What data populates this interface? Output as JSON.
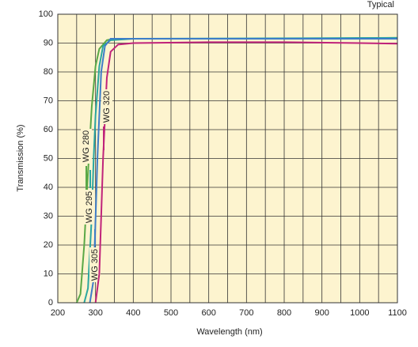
{
  "chart_data": {
    "type": "line",
    "note": "Typical",
    "xlabel": "Wavelength (nm)",
    "ylabel": "Transmission (%)",
    "xlim": [
      200,
      1100
    ],
    "ylim": [
      0,
      100
    ],
    "xticks": [
      200,
      300,
      400,
      500,
      600,
      700,
      800,
      900,
      1000,
      1100
    ],
    "x_minor_grid": [
      250,
      350,
      450,
      550,
      650,
      750,
      850,
      950,
      1050
    ],
    "yticks": [
      0,
      10,
      20,
      30,
      40,
      50,
      60,
      70,
      80,
      90,
      100
    ],
    "grid": true,
    "background": "#fdf4cf",
    "series": [
      {
        "name": "WG 280",
        "color": "#5aa846",
        "x": [
          250,
          260,
          270,
          280,
          290,
          300,
          310,
          330,
          350,
          400,
          600,
          800,
          1100
        ],
        "values": [
          0,
          3,
          20,
          45,
          68,
          82,
          88,
          91,
          91.5,
          91.5,
          91.5,
          91.5,
          91.8
        ]
      },
      {
        "name": "WG 295",
        "color": "#2aa6a0",
        "x": [
          270,
          280,
          290,
          295,
          300,
          310,
          320,
          340,
          400,
          1100
        ],
        "values": [
          0,
          5,
          30,
          50,
          65,
          82,
          89,
          91,
          91.5,
          91.8
        ]
      },
      {
        "name": "WG 305",
        "color": "#3d7dc8",
        "x": [
          285,
          295,
          305,
          315,
          325,
          340,
          400,
          1100
        ],
        "values": [
          0,
          8,
          50,
          80,
          89,
          91.5,
          91.5,
          91.5
        ]
      },
      {
        "name": "WG 320",
        "color": "#c0237a",
        "x": [
          300,
          310,
          320,
          330,
          340,
          360,
          400,
          600,
          800,
          1000,
          1100
        ],
        "values": [
          0,
          10,
          50,
          78,
          87,
          89.5,
          90,
          90.3,
          90.3,
          90,
          89.8
        ]
      }
    ]
  }
}
